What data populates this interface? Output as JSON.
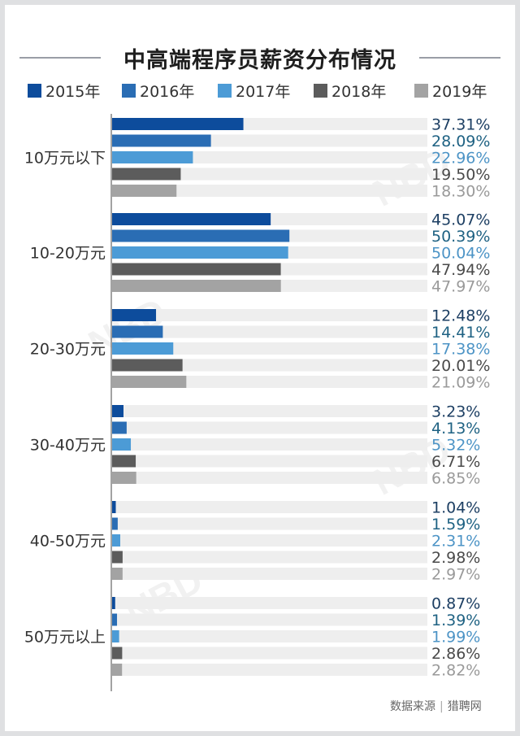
{
  "title": "中高端程序员薪资分布情况",
  "source": {
    "label": "数据来源",
    "name": "猎聘网"
  },
  "watermark": "NBD",
  "colors": {
    "background": "#dfe0e2",
    "track": "#eeeeee",
    "axis": "#444444"
  },
  "chart_data": {
    "type": "bar",
    "orientation": "horizontal",
    "unit": "%",
    "xlim": [
      0,
      100
    ],
    "legend_position": "top",
    "grid": false,
    "categories": [
      "10万元以下",
      "10-20万元",
      "20-30万元",
      "30-40万元",
      "40-50万元",
      "50万元以上"
    ],
    "series": [
      {
        "name": "2015年",
        "color": "#0d4c9c",
        "label_color": "#1d3f63",
        "values": [
          37.31,
          45.07,
          12.48,
          3.23,
          1.04,
          0.87
        ]
      },
      {
        "name": "2016年",
        "color": "#2a6db4",
        "label_color": "#1f6283",
        "values": [
          28.09,
          50.39,
          14.41,
          4.13,
          1.59,
          1.39
        ]
      },
      {
        "name": "2017年",
        "color": "#4c9bd6",
        "label_color": "#4d94c6",
        "values": [
          22.96,
          50.04,
          17.38,
          5.32,
          2.31,
          1.99
        ]
      },
      {
        "name": "2018年",
        "color": "#5c5c5c",
        "label_color": "#4a4a4a",
        "values": [
          19.5,
          47.94,
          20.01,
          6.71,
          2.98,
          2.86
        ]
      },
      {
        "name": "2019年",
        "color": "#a3a3a3",
        "label_color": "#9a9a9a",
        "values": [
          18.3,
          47.97,
          21.09,
          6.85,
          2.97,
          2.82
        ]
      }
    ]
  }
}
